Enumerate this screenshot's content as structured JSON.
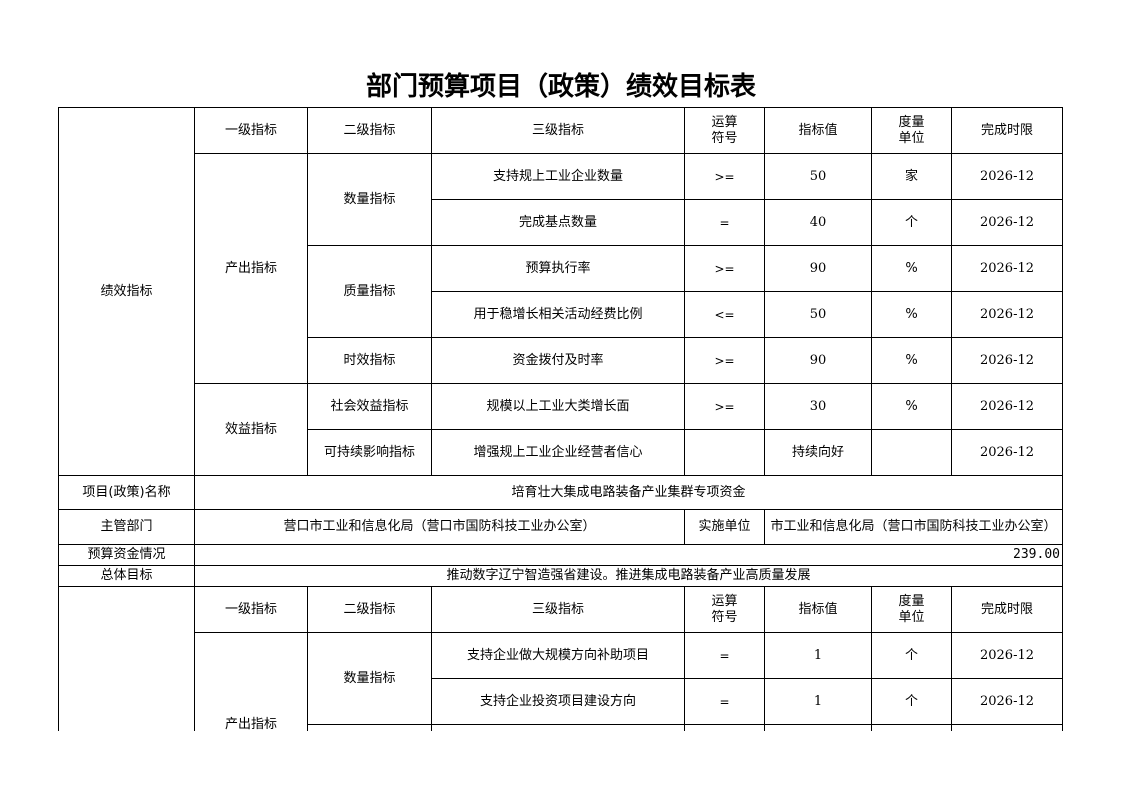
{
  "title": "部门预算项目（政策）绩效目标表",
  "headers": {
    "level1": "一级指标",
    "level2": "二级指标",
    "level3": "三级指标",
    "operator": "运算\n符号",
    "value": "指标值",
    "unit": "度量\n单位",
    "deadline": "完成时限"
  },
  "section1": {
    "label": "绩效指标",
    "groups": {
      "output": "产出指标",
      "benefit": "效益指标"
    },
    "subgroups": {
      "quantity": "数量指标",
      "quality": "质量指标",
      "timeliness": "时效指标",
      "social": "社会效益指标",
      "sustainable": "可持续影响指标"
    },
    "rows": [
      {
        "name": "支持规上工业企业数量",
        "op": ">=",
        "value": "50",
        "unit": "家",
        "deadline": "2026-12"
      },
      {
        "name": "完成基点数量",
        "op": "=",
        "value": "40",
        "unit": "个",
        "deadline": "2026-12"
      },
      {
        "name": "预算执行率",
        "op": ">=",
        "value": "90",
        "unit": "%",
        "deadline": "2026-12"
      },
      {
        "name": "用于稳增长相关活动经费比例",
        "op": "<=",
        "value": "50",
        "unit": "%",
        "deadline": "2026-12"
      },
      {
        "name": "资金拨付及时率",
        "op": ">=",
        "value": "90",
        "unit": "%",
        "deadline": "2026-12"
      },
      {
        "name": "规模以上工业大类增长面",
        "op": ">=",
        "value": "30",
        "unit": "%",
        "deadline": "2026-12"
      },
      {
        "name": "增强规上工业企业经营者信心",
        "op": "",
        "value": "持续向好",
        "unit": "",
        "deadline": "2026-12"
      }
    ]
  },
  "project": {
    "name_label": "项目(政策)名称",
    "name": "培育壮大集成电路装备产业集群专项资金",
    "dept_label": "主管部门",
    "dept": "营口市工业和信息化局（营口市国防科技工业办公室）",
    "impl_label": "实施单位",
    "impl": "市工业和信息化局（营口市国防科技工业办公室）",
    "budget_label": "预算资金情况",
    "budget": "239.00",
    "goal_label": "总体目标",
    "goal": "推动数字辽宁智造强省建设。推进集成电路装备产业高质量发展"
  },
  "section2": {
    "groups": {
      "output": "产出指标"
    },
    "subgroups": {
      "quantity": "数量指标"
    },
    "rows": [
      {
        "name": "支持企业做大规模方向补助项目",
        "op": "=",
        "value": "1",
        "unit": "个",
        "deadline": "2026-12"
      },
      {
        "name": "支持企业投资项目建设方向",
        "op": "=",
        "value": "1",
        "unit": "个",
        "deadline": "2026-12"
      }
    ]
  }
}
